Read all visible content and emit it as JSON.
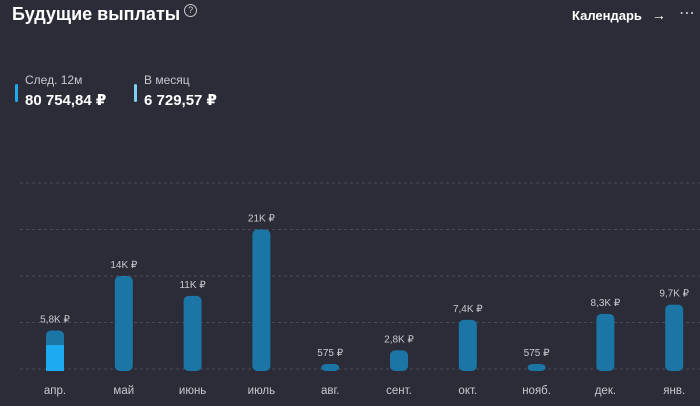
{
  "header": {
    "title": "Будущие выплаты",
    "help_icon": "question-circle-icon",
    "calendar_label": "Календарь",
    "arrow_icon": "→",
    "more_icon": "⋯"
  },
  "stats": [
    {
      "label": "След. 12м",
      "value": "80 754,84 ₽",
      "color": "#1eaaf0"
    },
    {
      "label": "В месяц",
      "value": "6 729,57 ₽",
      "color": "#7fd0f5"
    }
  ],
  "colors": {
    "bar": "#1b75a5",
    "highlight": "#1eaaf0",
    "grid": "#4a4b58",
    "background": "#2b2c38"
  },
  "chart_data": {
    "type": "bar",
    "title": "Будущие выплаты",
    "categories": [
      "апр.",
      "май",
      "июнь",
      "июль",
      "авг.",
      "сент.",
      "окт.",
      "нояб.",
      "дек.",
      "янв."
    ],
    "values": [
      5800,
      14000,
      11000,
      21000,
      575,
      2800,
      7400,
      575,
      8300,
      9700
    ],
    "labels": [
      "5,8K ₽",
      "14K ₽",
      "11K ₽",
      "21K ₽",
      "575 ₽",
      "2,8K ₽",
      "7,4K ₽",
      "575 ₽",
      "8,3K ₽",
      "9,7K ₽"
    ],
    "highlight": {
      "category": "апр.",
      "value": 3600
    },
    "ylim": [
      0,
      28000
    ],
    "grid": true,
    "xlabel": "",
    "ylabel": ""
  }
}
